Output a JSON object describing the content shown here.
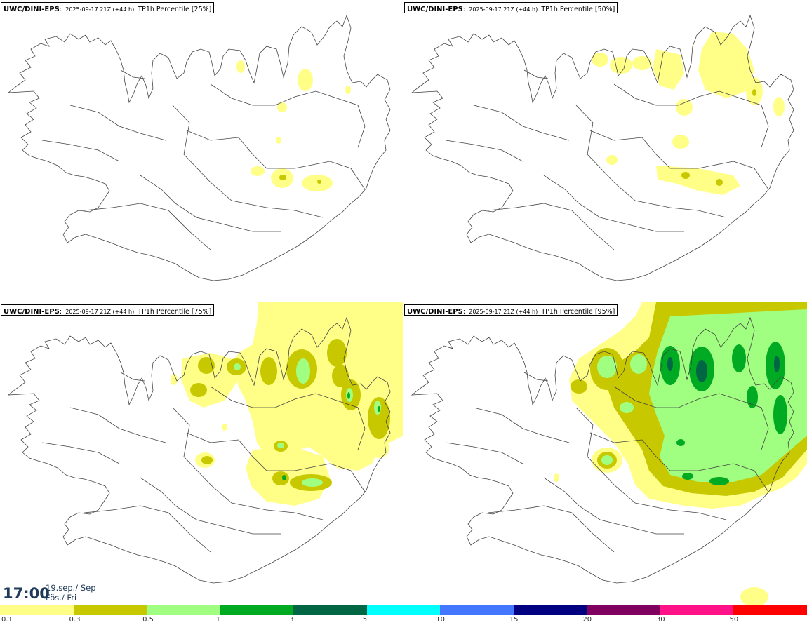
{
  "panels": [
    {
      "model": "UWC/DINI-EPS",
      "colon": ":",
      "run": "2025-09-17 21Z (+44 h)",
      "param": "TP1h Percentile [25%]"
    },
    {
      "model": "UWC/DINI-EPS",
      "colon": ":",
      "run": "2025-09-17 21Z (+44 h)",
      "param": "TP1h Percentile [50%]"
    },
    {
      "model": "UWC/DINI-EPS",
      "colon": ":",
      "run": "2025-09-17 21Z (+44 h)",
      "param": "TP1h Percentile [75%]"
    },
    {
      "model": "UWC/DINI-EPS",
      "colon": ":",
      "run": "2025-09-17 21Z (+44 h)",
      "param": "TP1h Percentile [95%]"
    }
  ],
  "valid_time": {
    "time": "17:00",
    "date": "19.sep./ Sep",
    "weekday": "Fös./ Fri"
  },
  "legend": [
    {
      "label": "0.1",
      "color": "#ffff88"
    },
    {
      "label": "0.3",
      "color": "#c8c800"
    },
    {
      "label": "0.5",
      "color": "#a0ff80"
    },
    {
      "label": "1",
      "color": "#00aa22"
    },
    {
      "label": "3",
      "color": "#006644"
    },
    {
      "label": "5",
      "color": "#00ffff"
    },
    {
      "label": "10",
      "color": "#4477ff"
    },
    {
      "label": "15",
      "color": "#000080"
    },
    {
      "label": "20",
      "color": "#800060"
    },
    {
      "label": "30",
      "color": "#ff1188"
    },
    {
      "label": "50",
      "color": "#ff0000"
    }
  ]
}
